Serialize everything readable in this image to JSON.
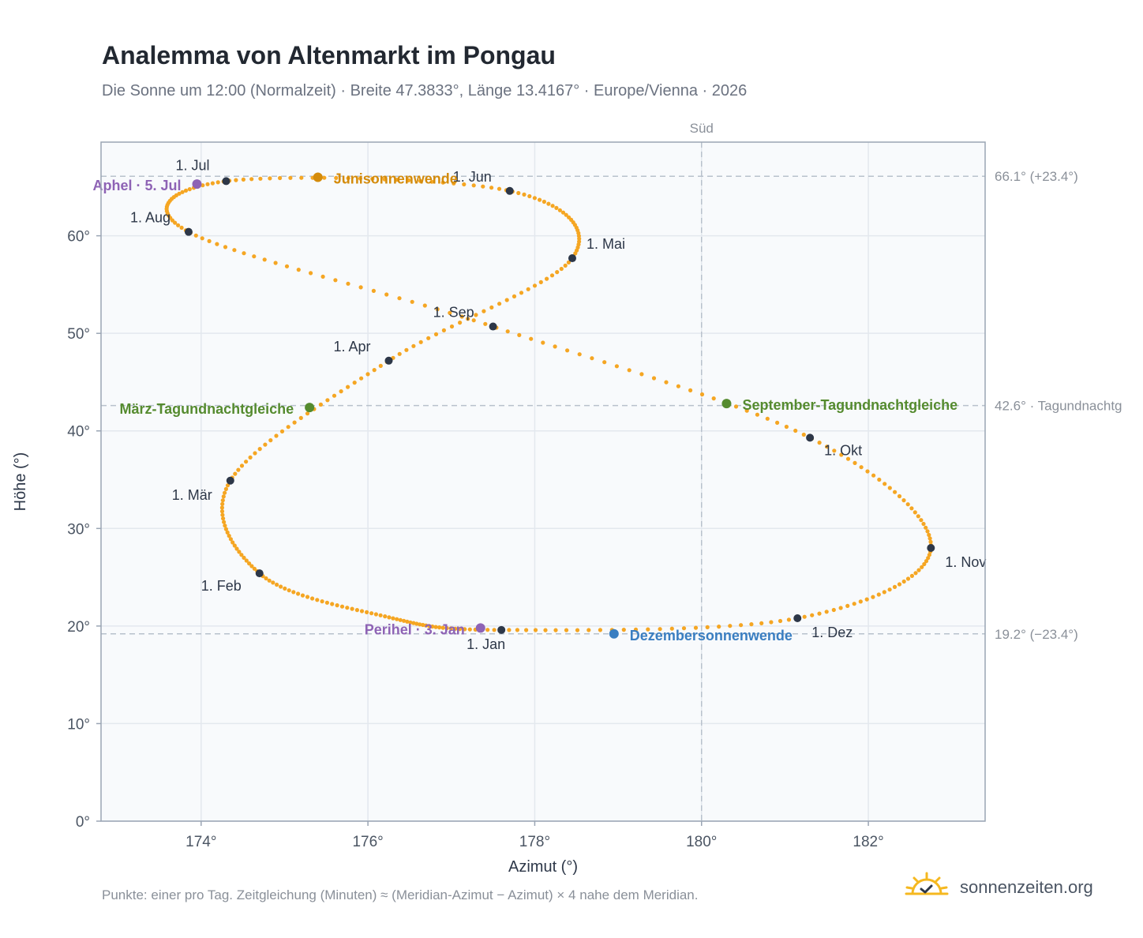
{
  "title": "Analemma von Altenmarkt im Pongau",
  "subtitle": "Die Sonne um 12:00 (Normalzeit) · Breite 47.3833°, Länge 13.4167° · Europe/Vienna · 2026",
  "footnote": "Punkte: einer pro Tag. Zeitgleichung (Minuten) ≈ (Meridian-Azimut − Azimut) × 4 nahe dem Meridian.",
  "logo": {
    "text": "sonnenzeiten.org",
    "icon": "sun-logo-icon"
  },
  "colors": {
    "curve": "#f5a623",
    "month_marker": "#2d3748",
    "solstice_june": "#d48b0b",
    "solstice_december": "#3a7ec1",
    "equinox": "#558b2f",
    "perihelion_aphelion": "#8e63b5",
    "reference_line": "#b8c1cc",
    "plot_background": "#f8fafc",
    "grid": "#e3e8ee",
    "frame": "#9aa5b4"
  },
  "chart_data": {
    "type": "scatter",
    "xlabel": "Azimut (°)",
    "ylabel": "Höhe (°)",
    "xlim": [
      172.8,
      183.4
    ],
    "ylim": [
      0,
      69.6
    ],
    "x_ticks": [
      174,
      176,
      178,
      180,
      182
    ],
    "x_tick_labels": [
      "174°",
      "176°",
      "178°",
      "180°",
      "182°"
    ],
    "y_ticks": [
      0,
      10,
      20,
      30,
      40,
      50,
      60
    ],
    "y_tick_labels": [
      "0°",
      "10°",
      "20°",
      "30°",
      "40°",
      "50°",
      "60°"
    ],
    "grid": true,
    "south_line": {
      "azimuth": 180,
      "label": "Süd"
    },
    "reference_lines": [
      {
        "altitude": 66.1,
        "label": "66.1° (+23.4°)"
      },
      {
        "altitude": 42.6,
        "label": "42.6° · Tagundnachtg"
      },
      {
        "altitude": 19.2,
        "label": "19.2° (−23.4°)"
      }
    ],
    "series": [
      {
        "points": [
          [
            177.6,
            19.6
          ],
          [
            176.2,
            21.0
          ],
          [
            174.7,
            25.4
          ],
          [
            174.35,
            34.9
          ],
          [
            176.25,
            47.2
          ],
          [
            178.45,
            57.7
          ],
          [
            177.7,
            64.6
          ],
          [
            174.3,
            65.6
          ],
          [
            173.85,
            60.4
          ],
          [
            177.5,
            50.7
          ],
          [
            181.3,
            39.3
          ],
          [
            182.75,
            28.0
          ],
          [
            181.15,
            20.8
          ],
          [
            177.6,
            19.6
          ]
        ],
        "note": "Jan 1 to Jan 1, control points of the daily curve"
      }
    ],
    "month_markers": [
      {
        "label": "1. Jan",
        "azimuth": 177.6,
        "altitude": 19.6
      },
      {
        "label": "1. Feb",
        "azimuth": 174.7,
        "altitude": 25.4
      },
      {
        "label": "1. Mär",
        "azimuth": 174.35,
        "altitude": 34.9
      },
      {
        "label": "1. Apr",
        "azimuth": 176.25,
        "altitude": 47.2
      },
      {
        "label": "1. Mai",
        "azimuth": 178.45,
        "altitude": 57.7
      },
      {
        "label": "1. Jun",
        "azimuth": 177.7,
        "altitude": 64.6
      },
      {
        "label": "1. Jul",
        "azimuth": 174.3,
        "altitude": 65.6
      },
      {
        "label": "1. Aug",
        "azimuth": 173.85,
        "altitude": 60.4
      },
      {
        "label": "1. Sep",
        "azimuth": 177.5,
        "altitude": 50.7
      },
      {
        "label": "1. Okt",
        "azimuth": 181.3,
        "altitude": 39.3
      },
      {
        "label": "1. Nov",
        "azimuth": 182.75,
        "altitude": 28.0
      },
      {
        "label": "1. Dez",
        "azimuth": 181.15,
        "altitude": 20.8
      }
    ],
    "events": [
      {
        "label": "Junisonnenwende",
        "azimuth": 175.4,
        "altitude": 66.0,
        "kind": "solstice_june"
      },
      {
        "label": "Dezembersonnenwende",
        "azimuth": 178.95,
        "altitude": 19.2,
        "kind": "solstice_december"
      },
      {
        "label": "März-Tagundnachtgleiche",
        "azimuth": 175.3,
        "altitude": 42.4,
        "kind": "equinox"
      },
      {
        "label": "September-Tagundnachtgleiche",
        "azimuth": 180.3,
        "altitude": 42.8,
        "kind": "equinox"
      },
      {
        "label": "Aphel · 5. Jul",
        "azimuth": 173.95,
        "altitude": 65.3,
        "kind": "perihelion_aphelion"
      },
      {
        "label": "Perihel · 3. Jan",
        "azimuth": 177.35,
        "altitude": 19.8,
        "kind": "perihelion_aphelion"
      }
    ]
  }
}
